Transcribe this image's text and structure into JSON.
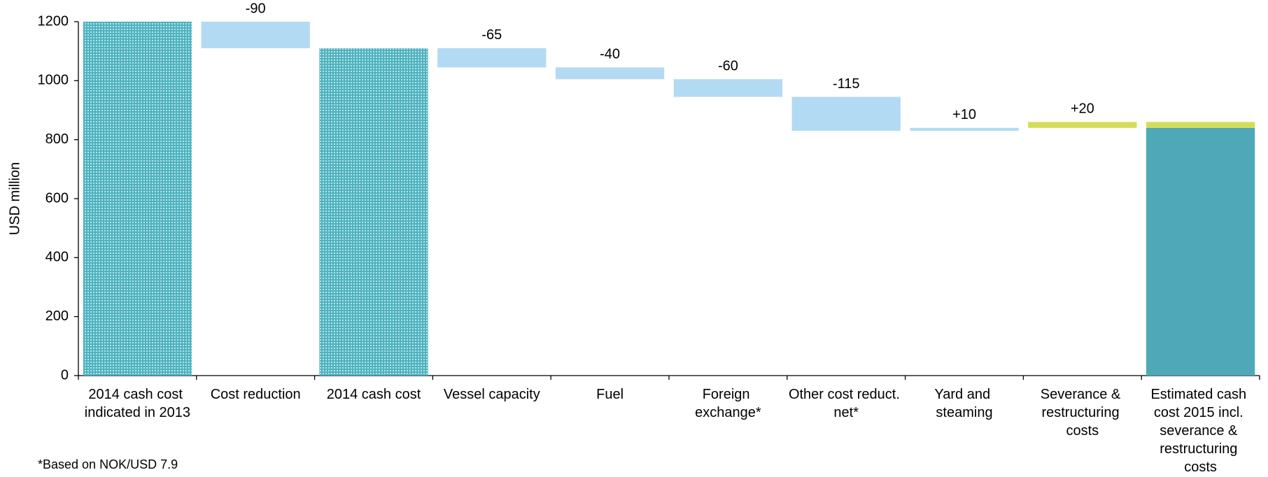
{
  "chart_data": {
    "type": "waterfall",
    "y_label": "USD million",
    "footnote": "*Based on NOK/USD 7.9",
    "categories": [
      "2014 cash cost indicated in 2013",
      "Cost reduction",
      "2014 cash cost",
      "Vessel capacity",
      "Fuel",
      "Foreign exchange*",
      "Other cost reduct. net*",
      "Yard and steaming",
      "Severance & restructuring costs",
      "Estimated cash cost 2015 incl. severance & restructuring costs"
    ],
    "kinds": [
      "total",
      "delta",
      "total",
      "delta",
      "delta",
      "delta",
      "delta",
      "delta",
      "delta",
      "total"
    ],
    "values": [
      1200,
      -90,
      1110,
      -65,
      -40,
      -60,
      -115,
      10,
      20,
      840
    ],
    "value_labels": [
      null,
      "-90",
      null,
      "-65",
      "-40",
      "-60",
      "-115",
      "+10",
      "+20",
      null
    ],
    "colors": [
      "#4fb3c0",
      "#b3daf3",
      "#4fb3c0",
      "#b3daf3",
      "#b3daf3",
      "#b3daf3",
      "#b3daf3",
      "#b3daf3",
      "#d4dc5a",
      "#4fa8b8"
    ],
    "styles": [
      "dotted",
      "solid",
      "dotted",
      "solid",
      "solid",
      "solid",
      "solid",
      "solid",
      "solid",
      "solid"
    ],
    "stack_top": {
      "index": 9,
      "value": 20,
      "color": "#d4dc5a"
    },
    "ylim": [
      0,
      1200
    ],
    "yticks": [
      0,
      200,
      400,
      600,
      800,
      1000,
      1200
    ]
  }
}
